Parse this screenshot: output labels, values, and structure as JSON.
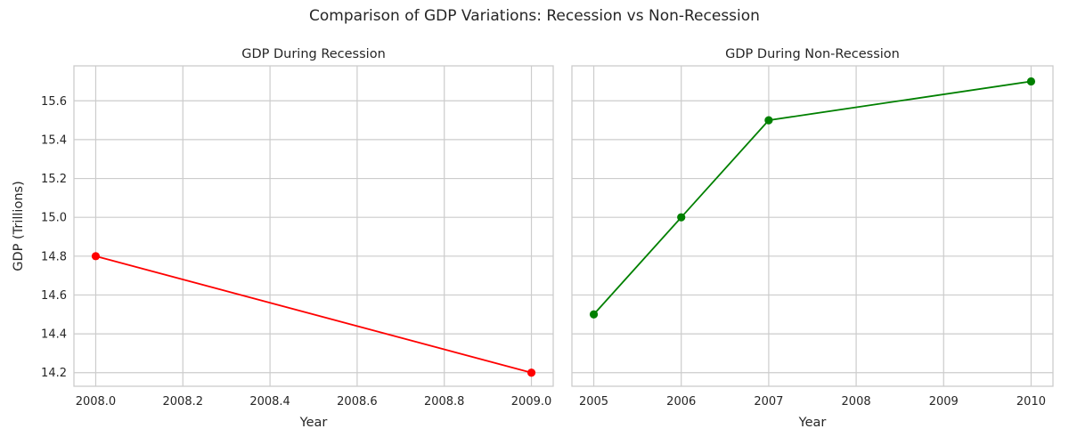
{
  "figure": {
    "title": "Comparison of GDP Variations: Recession vs Non-Recession"
  },
  "chart_data": [
    {
      "type": "line",
      "title": "GDP During Recession",
      "xlabel": "Year",
      "ylabel": "GDP (Trillions)",
      "x": [
        2008,
        2009
      ],
      "series": [
        {
          "values": [
            14.8,
            14.2
          ],
          "color": "#ff0000",
          "marker": "circle"
        }
      ],
      "xlim": [
        2007.95,
        2009.05
      ],
      "ylim": [
        14.13,
        15.78
      ],
      "xticks": [
        2008.0,
        2008.2,
        2008.4,
        2008.6,
        2008.8,
        2009.0
      ],
      "xtick_labels": [
        "2008.0",
        "2008.2",
        "2008.4",
        "2008.6",
        "2008.8",
        "2009.0"
      ],
      "yticks": [
        14.2,
        14.4,
        14.6,
        14.8,
        15.0,
        15.2,
        15.4,
        15.6
      ],
      "ytick_labels": [
        "14.2",
        "14.4",
        "14.6",
        "14.8",
        "15.0",
        "15.2",
        "15.4",
        "15.6"
      ],
      "show_yticklabels": true,
      "grid": true
    },
    {
      "type": "line",
      "title": "GDP During Non-Recession",
      "xlabel": "Year",
      "ylabel": "",
      "x": [
        2005,
        2006,
        2007,
        2010
      ],
      "series": [
        {
          "values": [
            14.5,
            15.0,
            15.5,
            15.7
          ],
          "color": "#008000",
          "marker": "circle"
        }
      ],
      "xlim": [
        2004.75,
        2010.25
      ],
      "ylim": [
        14.13,
        15.78
      ],
      "xticks": [
        2005,
        2006,
        2007,
        2008,
        2009,
        2010
      ],
      "xtick_labels": [
        "2005",
        "2006",
        "2007",
        "2008",
        "2009",
        "2010"
      ],
      "yticks": [
        14.2,
        14.4,
        14.6,
        14.8,
        15.0,
        15.2,
        15.4,
        15.6
      ],
      "ytick_labels": [
        "14.2",
        "14.4",
        "14.6",
        "14.8",
        "15.0",
        "15.2",
        "15.4",
        "15.6"
      ],
      "show_yticklabels": false,
      "grid": true
    }
  ]
}
